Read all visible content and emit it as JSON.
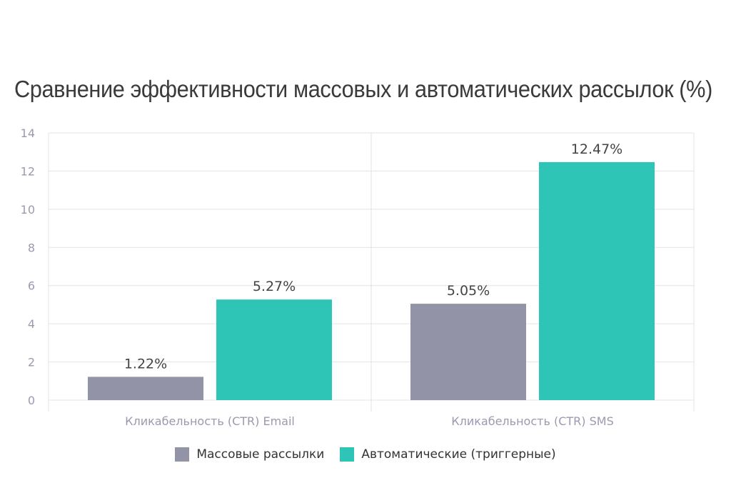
{
  "chart_data": {
    "type": "bar",
    "title": "Сравнение эффективности массовых и автоматических рассылок (%)",
    "categories": [
      "Кликабельность (CTR) Email",
      "Кликабельность (CTR) SMS"
    ],
    "series": [
      {
        "name": "Массовые рассылки",
        "values": [
          1.22,
          5.05
        ],
        "labels": [
          "1.22%",
          "5.05%"
        ],
        "color": "#9393a8"
      },
      {
        "name": "Автоматические (триггерные)",
        "values": [
          5.27,
          12.47
        ],
        "labels": [
          "5.27%",
          "12.47%"
        ],
        "color": "#2ec5b6"
      }
    ],
    "ylim": [
      0,
      14
    ],
    "yticks": [
      "0",
      "2",
      "4",
      "6",
      "8",
      "10",
      "12",
      "14"
    ],
    "xlabel": "",
    "ylabel": "",
    "grid": true,
    "legend_position": "bottom"
  }
}
